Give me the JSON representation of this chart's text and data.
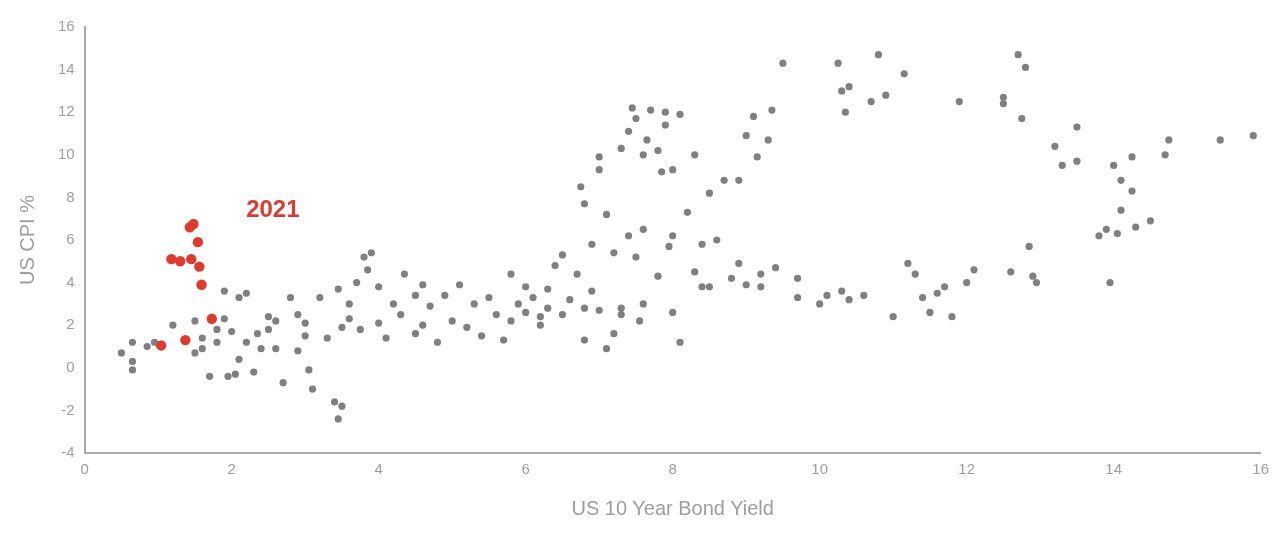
{
  "chart_data": {
    "type": "scatter",
    "xlabel": "US 10 Year Bond Yield",
    "ylabel": "US CPI %",
    "xlim": [
      0,
      16
    ],
    "xticks": [
      0,
      2,
      4,
      6,
      8,
      10,
      12,
      14,
      16
    ],
    "ylim": [
      -4,
      16
    ],
    "yticks": [
      -4,
      -2,
      0,
      2,
      4,
      6,
      8,
      10,
      12,
      14,
      16
    ],
    "grid": false,
    "legend": false,
    "marker": "circle",
    "annotations": [
      "2021"
    ],
    "series": [
      {
        "color": "#808080",
        "x": [
          0.5,
          0.65,
          0.65,
          0.65,
          0.85,
          0.95,
          1.2,
          1.5,
          1.5,
          1.6,
          1.7,
          1.6,
          1.8,
          1.9,
          1.9,
          1.95,
          2.05,
          2.1,
          2.1,
          2.2,
          2.2,
          2.3,
          2.35,
          2.5,
          2.6,
          2.6,
          2.7,
          2.8,
          2.9,
          2.9,
          3.0,
          3.05,
          3.1,
          3.2,
          3.3,
          3.4,
          3.5,
          3.45,
          3.5,
          3.45,
          3.6,
          3.7,
          3.75,
          3.8,
          3.9,
          3.85,
          4.0,
          4.0,
          4.1,
          4.2,
          4.3,
          4.35,
          4.5,
          4.6,
          4.6,
          4.7,
          4.8,
          4.9,
          5.0,
          5.1,
          5.2,
          5.3,
          5.4,
          5.6,
          5.7,
          5.8,
          5.8,
          5.9,
          6.0,
          6.1,
          6.2,
          6.3,
          6.3,
          6.4,
          6.5,
          6.5,
          6.6,
          6.7,
          6.8,
          6.8,
          6.9,
          6.75,
          6.8,
          6.9,
          7.0,
          7.0,
          7.0,
          7.1,
          7.2,
          7.2,
          7.3,
          7.3,
          7.4,
          7.4,
          7.45,
          7.5,
          7.5,
          7.55,
          7.6,
          7.6,
          7.65,
          7.7,
          7.8,
          7.85,
          7.9,
          7.9,
          7.95,
          8.0,
          8.0,
          8.0,
          8.1,
          8.1,
          8.2,
          8.3,
          8.3,
          8.4,
          8.5,
          8.5,
          8.6,
          8.7,
          8.8,
          8.9,
          8.9,
          9.0,
          9.0,
          9.1,
          9.15,
          9.2,
          9.3,
          9.35,
          9.4,
          9.5,
          9.7,
          9.7,
          10.0,
          10.25,
          10.3,
          10.3,
          10.35,
          10.4,
          10.4,
          10.6,
          10.7,
          10.8,
          10.9,
          11.0,
          11.15,
          11.2,
          11.3,
          11.4,
          11.5,
          11.6,
          11.7,
          11.8,
          11.9,
          12.0,
          12.1,
          12.5,
          12.5,
          12.6,
          12.7,
          12.75,
          12.8,
          12.85,
          12.9,
          12.95,
          13.2,
          13.3,
          13.5,
          13.5,
          13.8,
          13.9,
          13.95,
          14.0,
          14.05,
          14.1,
          14.1,
          14.25,
          14.25,
          14.3,
          14.5,
          14.7,
          14.75,
          15.45,
          15.9,
          3.0,
          2.0,
          1.8,
          2.4,
          2.5,
          3.6,
          4.5,
          5.5,
          6.2,
          6.0,
          7.6,
          7.3,
          7.8,
          8.4,
          9.2,
          10.1,
          7.1
        ],
        "values": [
          0.7,
          1.2,
          0.3,
          -0.1,
          1.0,
          1.2,
          2.0,
          2.2,
          0.7,
          1.4,
          -0.4,
          0.9,
          1.8,
          3.6,
          2.3,
          -0.4,
          -0.3,
          0.4,
          3.3,
          3.5,
          1.2,
          -0.2,
          1.6,
          1.8,
          2.2,
          0.9,
          -0.7,
          3.3,
          2.5,
          0.8,
          1.5,
          -0.1,
          -1.0,
          3.3,
          1.4,
          -1.6,
          -1.8,
          -2.4,
          1.9,
          3.7,
          2.3,
          4.0,
          1.8,
          5.2,
          5.4,
          4.6,
          3.8,
          2.1,
          1.4,
          3.0,
          2.5,
          4.4,
          3.4,
          3.9,
          2.0,
          2.9,
          1.2,
          3.4,
          2.2,
          3.9,
          1.9,
          3.0,
          1.5,
          2.5,
          1.3,
          2.2,
          4.4,
          3.0,
          2.6,
          3.3,
          2.4,
          2.8,
          3.7,
          4.8,
          2.5,
          5.3,
          3.2,
          4.4,
          1.3,
          2.8,
          3.6,
          8.5,
          7.7,
          5.8,
          9.9,
          9.3,
          2.7,
          7.2,
          5.4,
          1.6,
          2.5,
          10.3,
          6.2,
          11.1,
          12.2,
          11.7,
          5.2,
          2.2,
          10.0,
          6.5,
          10.7,
          12.1,
          10.2,
          9.2,
          12.0,
          11.4,
          5.7,
          2.6,
          9.3,
          6.2,
          11.9,
          1.2,
          7.3,
          10.0,
          4.5,
          5.8,
          8.2,
          3.8,
          6.0,
          8.8,
          4.2,
          4.9,
          8.8,
          10.9,
          3.9,
          11.8,
          9.9,
          4.4,
          10.7,
          12.1,
          4.7,
          14.3,
          3.3,
          4.2,
          3.0,
          14.3,
          13.0,
          3.6,
          12.0,
          13.2,
          3.2,
          3.4,
          12.5,
          14.7,
          12.8,
          2.4,
          13.8,
          4.9,
          4.4,
          3.3,
          2.6,
          3.5,
          3.8,
          2.4,
          12.5,
          4.0,
          4.6,
          12.7,
          12.4,
          4.5,
          14.7,
          11.7,
          14.1,
          5.7,
          4.3,
          4.0,
          10.4,
          9.5,
          11.3,
          9.7,
          6.2,
          6.5,
          4.0,
          9.5,
          6.3,
          8.8,
          7.4,
          8.3,
          9.9,
          6.6,
          6.9,
          10.0,
          10.7,
          10.7,
          10.9,
          2.1,
          1.7,
          1.2,
          0.9,
          2.4,
          3.0,
          1.6,
          3.3,
          2.0,
          3.8,
          3.0,
          2.8,
          4.3,
          3.8,
          3.8,
          3.4,
          0.9
        ]
      },
      {
        "color": "#e03a2e",
        "x": [
          1.04,
          1.37,
          1.73,
          1.59,
          1.56,
          1.54,
          1.45,
          1.43,
          1.48,
          1.18,
          1.3
        ],
        "values": [
          1.05,
          1.3,
          2.3,
          3.9,
          4.75,
          5.9,
          5.1,
          6.6,
          6.75,
          5.1,
          5.0
        ]
      }
    ]
  }
}
